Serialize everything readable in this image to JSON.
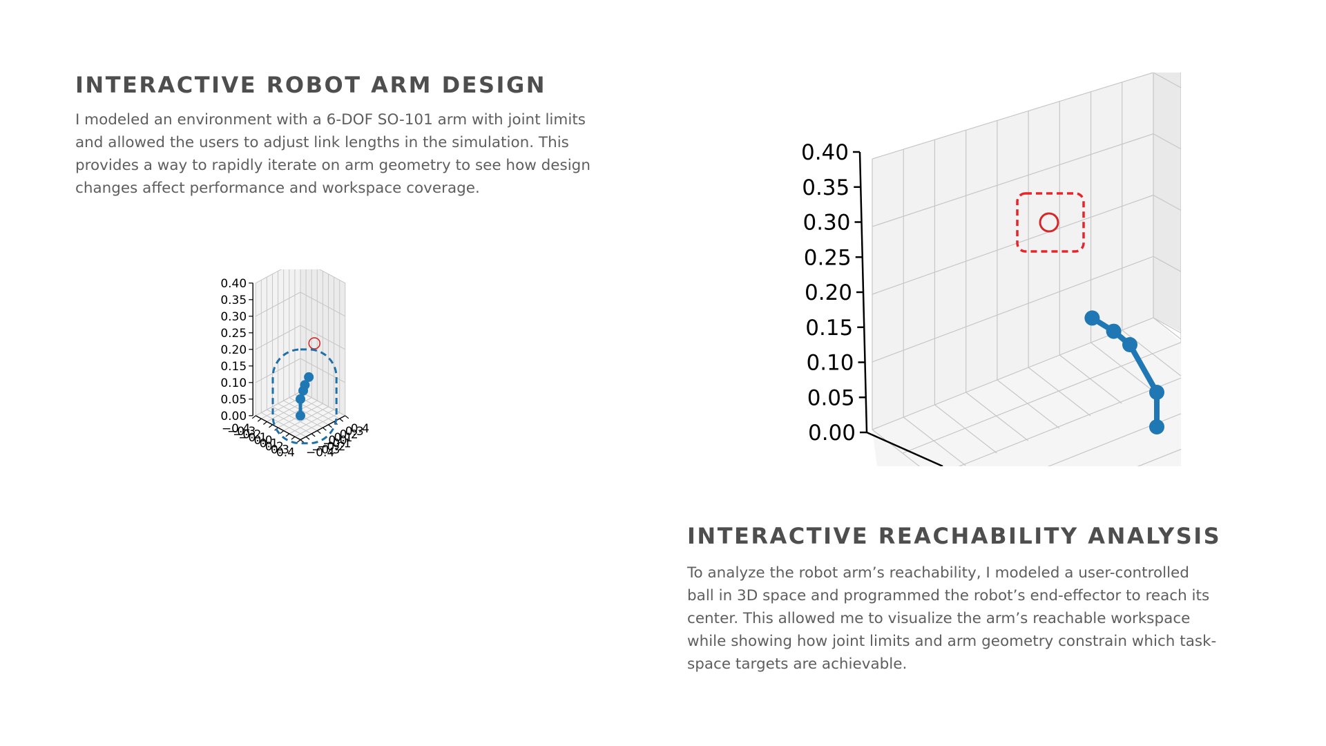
{
  "sections": {
    "robot_arm_design": {
      "title": "Interactive Robot Arm Design",
      "lines": [
        "I modeled an environment with a 6-DOF SO-101 arm with joint limits",
        "and allowed the users to adjust link lengths in the simulation. This",
        "provides a way to rapidly iterate on arm geometry to see how design",
        "changes affect performance and workspace coverage."
      ]
    },
    "reachability": {
      "title": "Interactive Reachability Analysis",
      "lines": [
        "To analyze the robot arm’s reachability, I modeled a user-controlled",
        "ball in 3D space and programmed the robot’s end-effector to reach its",
        "center. This allowed me to visualize the arm’s  reachable workspace",
        "while showing how joint limits and arm geometry constrain which task-",
        "space targets are achievable."
      ]
    }
  },
  "colors": {
    "arm": "#1f77b4",
    "target": "#d62728",
    "highlight_arm": "#1f6fa8",
    "highlight_target": "#e8232a",
    "grid": "#c6c6c6",
    "pane": "#f2f2f2"
  },
  "chart_data": [
    {
      "type": "scatter3d",
      "title": "",
      "xlim": [
        -0.4,
        0.4
      ],
      "ylim": [
        -0.4,
        0.4
      ],
      "zlim": [
        0.0,
        0.4
      ],
      "z_ticks": [
        "0.00",
        "0.05",
        "0.10",
        "0.15",
        "0.20",
        "0.25",
        "0.30",
        "0.35",
        "0.40"
      ],
      "x_ticks": [
        "−0.4",
        "−0.3",
        "−0.2",
        "−0.1",
        "0.0",
        "0.1",
        "0.2",
        "0.3",
        "0.4"
      ],
      "y_ticks": [
        "−0.4",
        "−0.3",
        "−0.2",
        "−0.1",
        "0.0",
        "0.1",
        "0.2",
        "0.3",
        "0.4"
      ],
      "arm_joints": [
        {
          "x": 0.0,
          "y": 0.0,
          "z": 0.0
        },
        {
          "x": 0.0,
          "y": 0.0,
          "z": 0.05
        },
        {
          "x": 0.0,
          "y": 0.05,
          "z": 0.08
        },
        {
          "x": 0.0,
          "y": 0.08,
          "z": 0.1
        },
        {
          "x": 0.0,
          "y": 0.15,
          "z": 0.13
        }
      ],
      "target": {
        "x": 0.05,
        "y": 0.3,
        "z": 0.25
      },
      "highlight": "arm"
    },
    {
      "type": "scatter3d",
      "title": "",
      "view": "zoomed",
      "zlim": [
        0.0,
        0.4
      ],
      "z_ticks": [
        "0.00",
        "0.05",
        "0.10",
        "0.15",
        "0.20",
        "0.25",
        "0.30",
        "0.35",
        "0.40"
      ],
      "arm_joints": [
        {
          "x": 0.0,
          "y": 0.0,
          "z": 0.0
        },
        {
          "x": 0.0,
          "y": 0.0,
          "z": 0.05
        },
        {
          "x": 0.0,
          "y": 0.05,
          "z": 0.12
        },
        {
          "x": 0.0,
          "y": 0.08,
          "z": 0.14
        },
        {
          "x": 0.0,
          "y": 0.12,
          "z": 0.16
        }
      ],
      "target": {
        "x": 0.0,
        "y": 0.2,
        "z": 0.3
      },
      "highlight": "target"
    }
  ]
}
